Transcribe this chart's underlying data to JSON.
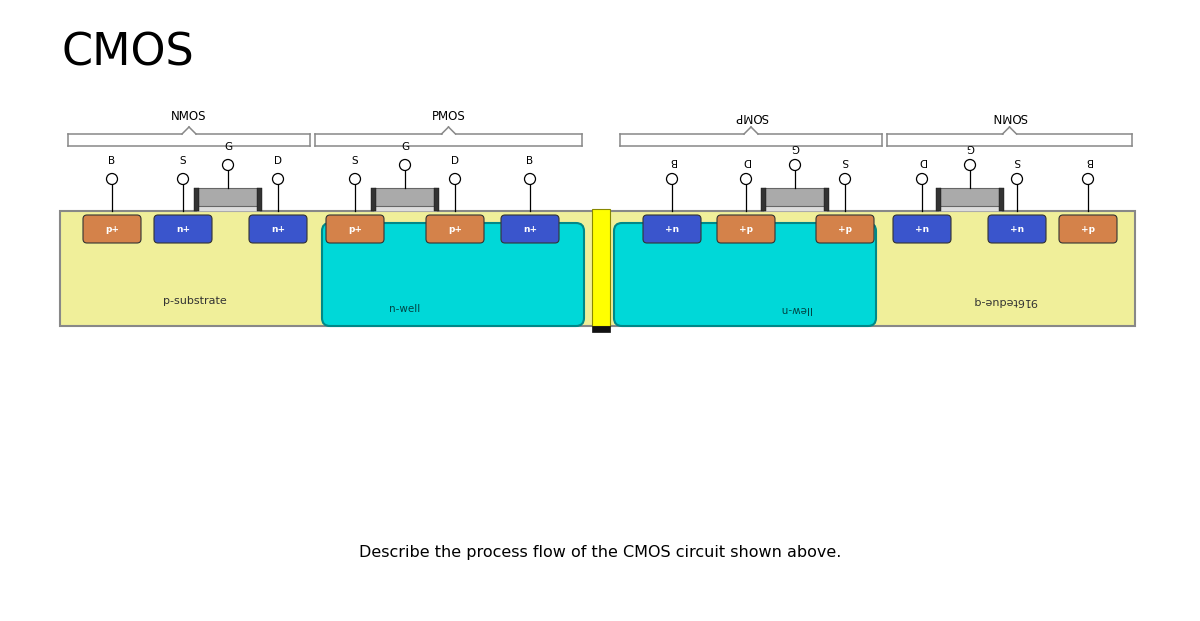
{
  "title": "CMOS",
  "question_text": "Describe the process flow of the CMOS circuit shown above.",
  "bg_color": "#ffffff",
  "substrate_color": "#f0ef9a",
  "substrate_border": "#888888",
  "nwell_color": "#00d8d8",
  "nwell_border": "#008888",
  "pplus_color": "#d4824a",
  "nplus_color": "#3a55cc",
  "gate_oxide_color": "#dddddd",
  "gate_poly_color": "#aaaaaa",
  "yellow_line_color": "#ffff00",
  "labels": {
    "nmos_left": "NMOS",
    "pmos_left": "PMOS",
    "pmos_right": "SOMP",
    "nmos_right": "SOMN",
    "nwell_left": "n-well",
    "nwell_right": "llew-n",
    "substrate_left": "p-substrate",
    "substrate_right": "916tedue-q"
  },
  "figure_width": 12.0,
  "figure_height": 6.21
}
